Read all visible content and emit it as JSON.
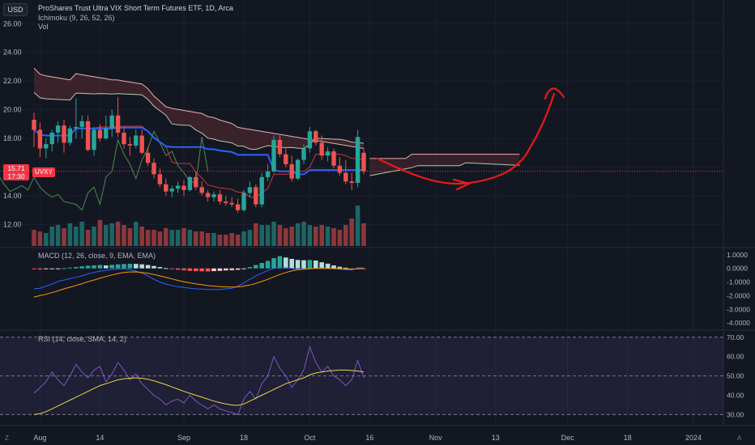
{
  "header": {
    "currency": "USD",
    "title": "ProShares Trust Ultra VIX Short Term Futures ETF, 1D, Arca",
    "indicator_ichimoku": "Ichimoku (9, 26, 52, 26)",
    "indicator_vol": "Vol"
  },
  "price_tag": {
    "price": "15.71",
    "time": "17:30",
    "symbol": "UVXY"
  },
  "macd_label": "MACD (12, 26, close, 9, EMA, EMA)",
  "rsi_label": "RSI (14, close, SMA, 14, 2)",
  "corner": {
    "left": "Z",
    "right": "A"
  },
  "colors": {
    "up": "#26a69a",
    "down": "#ef5350",
    "baseline": "#2962ff",
    "cloud_bear": "#5b2c33",
    "rsi": "#7e57c2",
    "rsi_ma": "#e8d94a",
    "annotation": "#e81919"
  },
  "chart_data": [
    {
      "type": "candlestick",
      "panel": "price",
      "y_ticks": [
        "26.00",
        "24.00",
        "22.00",
        "20.00",
        "18.00",
        "16.00",
        "14.00",
        "12.00"
      ],
      "ylim": [
        10.5,
        27.2
      ],
      "x_ticks": [
        "Aug",
        "14",
        "Sep",
        "18",
        "Oct",
        "16",
        "Nov",
        "13",
        "Dec",
        "18",
        "2024"
      ],
      "last_price": 15.71,
      "candles": [
        {
          "o": 19.3,
          "h": 19.8,
          "l": 17.4,
          "c": 18.6
        },
        {
          "o": 18.6,
          "h": 19.1,
          "l": 16.7,
          "c": 17.3
        },
        {
          "o": 17.3,
          "h": 18.0,
          "l": 16.6,
          "c": 17.6
        },
        {
          "o": 17.6,
          "h": 18.6,
          "l": 17.1,
          "c": 18.4
        },
        {
          "o": 18.4,
          "h": 19.2,
          "l": 17.7,
          "c": 18.9
        },
        {
          "o": 18.9,
          "h": 19.3,
          "l": 17.0,
          "c": 17.7
        },
        {
          "o": 17.7,
          "h": 18.9,
          "l": 17.5,
          "c": 18.7
        },
        {
          "o": 18.7,
          "h": 20.8,
          "l": 18.0,
          "c": 18.8
        },
        {
          "o": 18.8,
          "h": 19.6,
          "l": 18.0,
          "c": 19.2
        },
        {
          "o": 19.2,
          "h": 19.6,
          "l": 17.1,
          "c": 17.2
        },
        {
          "o": 17.2,
          "h": 18.8,
          "l": 16.8,
          "c": 18.6
        },
        {
          "o": 18.6,
          "h": 19.0,
          "l": 17.8,
          "c": 18.0
        },
        {
          "o": 18.0,
          "h": 19.6,
          "l": 17.9,
          "c": 18.7
        },
        {
          "o": 18.7,
          "h": 20.0,
          "l": 18.1,
          "c": 19.6
        },
        {
          "o": 19.6,
          "h": 20.9,
          "l": 18.1,
          "c": 18.4
        },
        {
          "o": 18.4,
          "h": 18.8,
          "l": 17.3,
          "c": 17.6
        },
        {
          "o": 17.6,
          "h": 18.1,
          "l": 16.8,
          "c": 17.5
        },
        {
          "o": 17.5,
          "h": 18.6,
          "l": 17.3,
          "c": 18.2
        },
        {
          "o": 18.2,
          "h": 18.6,
          "l": 16.9,
          "c": 17.0
        },
        {
          "o": 17.0,
          "h": 17.4,
          "l": 16.1,
          "c": 16.3
        },
        {
          "o": 16.3,
          "h": 16.6,
          "l": 15.2,
          "c": 15.5
        },
        {
          "o": 15.5,
          "h": 15.9,
          "l": 14.6,
          "c": 14.8
        },
        {
          "o": 14.8,
          "h": 15.2,
          "l": 14.0,
          "c": 14.3
        },
        {
          "o": 14.3,
          "h": 14.7,
          "l": 13.9,
          "c": 14.5
        },
        {
          "o": 14.5,
          "h": 15.0,
          "l": 14.2,
          "c": 14.7
        },
        {
          "o": 14.7,
          "h": 15.1,
          "l": 14.0,
          "c": 14.4
        },
        {
          "o": 14.4,
          "h": 15.4,
          "l": 14.3,
          "c": 15.3
        },
        {
          "o": 15.3,
          "h": 15.7,
          "l": 14.4,
          "c": 14.6
        },
        {
          "o": 14.6,
          "h": 15.0,
          "l": 14.0,
          "c": 14.2
        },
        {
          "o": 14.2,
          "h": 14.4,
          "l": 13.6,
          "c": 13.9
        },
        {
          "o": 13.9,
          "h": 14.3,
          "l": 13.6,
          "c": 14.1
        },
        {
          "o": 14.1,
          "h": 14.4,
          "l": 13.4,
          "c": 13.6
        },
        {
          "o": 13.6,
          "h": 14.0,
          "l": 13.3,
          "c": 13.5
        },
        {
          "o": 13.5,
          "h": 13.9,
          "l": 13.2,
          "c": 13.4
        },
        {
          "o": 13.4,
          "h": 13.8,
          "l": 12.8,
          "c": 13.0
        },
        {
          "o": 13.0,
          "h": 14.4,
          "l": 12.9,
          "c": 14.2
        },
        {
          "o": 14.2,
          "h": 15.0,
          "l": 13.9,
          "c": 14.6
        },
        {
          "o": 14.6,
          "h": 14.8,
          "l": 13.2,
          "c": 13.4
        },
        {
          "o": 13.4,
          "h": 15.6,
          "l": 13.2,
          "c": 15.3
        },
        {
          "o": 15.3,
          "h": 16.2,
          "l": 15.0,
          "c": 15.7
        },
        {
          "o": 15.7,
          "h": 18.2,
          "l": 15.6,
          "c": 17.9
        },
        {
          "o": 17.9,
          "h": 18.2,
          "l": 16.7,
          "c": 16.9
        },
        {
          "o": 16.9,
          "h": 17.4,
          "l": 16.0,
          "c": 16.2
        },
        {
          "o": 16.2,
          "h": 16.8,
          "l": 15.0,
          "c": 15.2
        },
        {
          "o": 15.2,
          "h": 16.6,
          "l": 15.1,
          "c": 16.5
        },
        {
          "o": 16.5,
          "h": 17.6,
          "l": 16.2,
          "c": 17.3
        },
        {
          "o": 17.3,
          "h": 18.8,
          "l": 17.0,
          "c": 18.5
        },
        {
          "o": 18.5,
          "h": 18.6,
          "l": 17.5,
          "c": 17.7
        },
        {
          "o": 17.7,
          "h": 18.2,
          "l": 16.5,
          "c": 16.8
        },
        {
          "o": 16.8,
          "h": 17.4,
          "l": 16.4,
          "c": 17.1
        },
        {
          "o": 17.1,
          "h": 17.3,
          "l": 15.9,
          "c": 16.1
        },
        {
          "o": 16.1,
          "h": 16.7,
          "l": 15.4,
          "c": 15.6
        },
        {
          "o": 15.6,
          "h": 16.5,
          "l": 14.8,
          "c": 15.0
        },
        {
          "o": 15.0,
          "h": 15.6,
          "l": 14.4,
          "c": 14.9
        },
        {
          "o": 14.9,
          "h": 18.6,
          "l": 14.6,
          "c": 18.1
        },
        {
          "o": 17.0,
          "h": 17.3,
          "l": 15.5,
          "c": 15.7
        }
      ],
      "volume": [
        10,
        9,
        8,
        12,
        13,
        11,
        14,
        12,
        15,
        10,
        12,
        16,
        13,
        14,
        15,
        13,
        11,
        15,
        12,
        10,
        10,
        9,
        11,
        10,
        10,
        11,
        10,
        9,
        9,
        8,
        8,
        7,
        7,
        8,
        7,
        9,
        10,
        14,
        13,
        13,
        15,
        13,
        11,
        12,
        14,
        15,
        13,
        12,
        13,
        12,
        11,
        10,
        13,
        17,
        25,
        14
      ]
    },
    {
      "type": "histogram",
      "panel": "macd",
      "y_ticks": [
        "1.0000",
        "0.0000",
        "-1.0000",
        "-2.0000",
        "-3.0000",
        "-4.0000"
      ],
      "ylim": [
        -4.35,
        1.35
      ],
      "hist": [
        -0.05,
        -0.08,
        -0.06,
        -0.04,
        -0.02,
        0.02,
        0.06,
        0.1,
        0.15,
        0.2,
        0.22,
        0.25,
        0.22,
        0.26,
        0.3,
        0.32,
        0.34,
        0.33,
        0.3,
        0.25,
        0.18,
        0.1,
        0.02,
        -0.05,
        -0.1,
        -0.14,
        -0.18,
        -0.2,
        -0.21,
        -0.22,
        -0.2,
        -0.18,
        -0.15,
        -0.13,
        -0.1,
        -0.02,
        0.1,
        0.25,
        0.4,
        0.55,
        0.75,
        0.9,
        0.8,
        0.7,
        0.62,
        0.6,
        0.62,
        0.58,
        0.45,
        0.35,
        0.22,
        0.12,
        0.05,
        -0.02,
        0.0,
        -0.06
      ],
      "macd": [
        -1.5,
        -1.45,
        -1.3,
        -1.15,
        -0.95,
        -0.85,
        -0.75,
        -0.65,
        -0.55,
        -0.4,
        -0.3,
        -0.2,
        -0.15,
        -0.08,
        -0.05,
        -0.04,
        -0.1,
        -0.2,
        -0.35,
        -0.55,
        -0.8,
        -1.0,
        -1.15,
        -1.25,
        -1.35,
        -1.4,
        -1.45,
        -1.5,
        -1.52,
        -1.55,
        -1.55,
        -1.55,
        -1.5,
        -1.45,
        -1.3,
        -1.05,
        -0.8,
        -0.55,
        -0.35,
        -0.15,
        0.0,
        0.05,
        0.05,
        0.0,
        -0.05,
        -0.05,
        -0.02,
        0.0,
        0.02,
        0.0,
        -0.02,
        -0.05,
        -0.1,
        -0.12,
        0.05,
        0.02
      ],
      "signal": [
        -2.1,
        -2.0,
        -1.9,
        -1.78,
        -1.65,
        -1.5,
        -1.38,
        -1.25,
        -1.12,
        -0.98,
        -0.85,
        -0.72,
        -0.6,
        -0.48,
        -0.38,
        -0.3,
        -0.26,
        -0.26,
        -0.3,
        -0.36,
        -0.45,
        -0.55,
        -0.66,
        -0.77,
        -0.88,
        -0.98,
        -1.06,
        -1.14,
        -1.2,
        -1.26,
        -1.3,
        -1.34,
        -1.36,
        -1.37,
        -1.36,
        -1.3,
        -1.22,
        -1.1,
        -0.96,
        -0.8,
        -0.62,
        -0.45,
        -0.3,
        -0.18,
        -0.1,
        -0.05,
        -0.02,
        0.0,
        0.0,
        0.0,
        -0.01,
        -0.02,
        -0.04,
        -0.06,
        -0.02,
        0.0
      ]
    },
    {
      "type": "line",
      "panel": "rsi",
      "y_ticks": [
        "70.00",
        "60.00",
        "50.00",
        "40.00",
        "30.00"
      ],
      "ylim": [
        26,
        72
      ],
      "bands": [
        70,
        50,
        30
      ],
      "rsi": [
        41,
        44,
        47,
        52,
        48,
        45,
        50,
        56,
        52,
        49,
        53,
        55,
        47,
        51,
        57,
        53,
        48,
        51,
        46,
        43,
        40,
        38,
        35,
        37,
        38,
        36,
        40,
        37,
        35,
        33,
        35,
        33,
        32,
        31,
        30,
        38,
        42,
        38,
        46,
        50,
        60,
        54,
        50,
        44,
        48,
        53,
        65,
        57,
        52,
        55,
        50,
        48,
        45,
        48,
        58,
        49
      ],
      "rsi_ma": [
        30,
        30.5,
        31.5,
        33,
        34.5,
        36,
        37.5,
        39,
        40.5,
        42,
        43.5,
        45,
        46,
        47,
        48,
        48.5,
        48.8,
        49,
        48.8,
        48.3,
        47.5,
        46.5,
        45.5,
        44.3,
        43.2,
        42,
        41,
        40,
        39,
        38,
        37,
        36.2,
        35.5,
        35,
        34.8,
        35.5,
        37,
        38.5,
        40,
        41.5,
        43,
        44.5,
        46,
        47,
        48,
        49,
        50.5,
        51.5,
        52,
        52.5,
        52.8,
        53,
        53,
        52.8,
        52.5,
        52
      ]
    }
  ]
}
